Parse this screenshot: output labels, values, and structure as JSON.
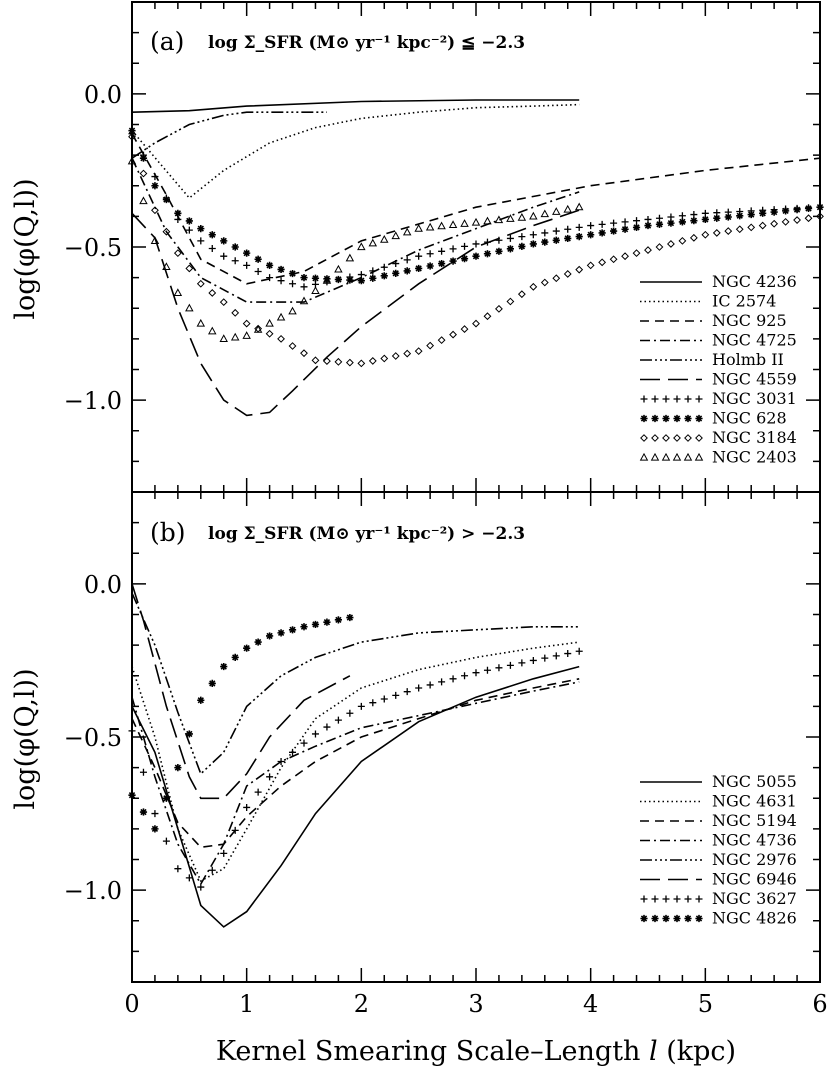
{
  "chart_data": {
    "type": "line",
    "x_axis": {
      "label_pre": "Kernel Smearing Scale–Length ",
      "label_var": "l",
      "label_post": " (kpc)",
      "xlim": [
        0,
        6
      ],
      "ticks": [
        "0",
        "1",
        "2",
        "3",
        "4",
        "5",
        "6"
      ]
    },
    "y_axis": {
      "label": "log(φ(Q,l))",
      "ticks": [
        "0.0",
        "−0.5",
        "−1.0"
      ]
    },
    "panels": [
      {
        "id": "a",
        "label": "(a)",
        "condition": "log Σ_SFR (M⊙ yr⁻¹ kpc⁻²) ≦ −2.3",
        "ylim": [
          -1.3,
          0.3
        ],
        "series": [
          {
            "name": "NGC 4236",
            "style": "solid",
            "x": [
              0,
              0.5,
              1,
              2,
              3,
              3.9
            ],
            "y": [
              -0.06,
              -0.055,
              -0.04,
              -0.025,
              -0.02,
              -0.02
            ]
          },
          {
            "name": "IC 2574",
            "style": "dotted",
            "x": [
              0,
              0.5,
              0.8,
              1.2,
              1.6,
              2,
              2.5,
              3,
              3.5,
              3.9
            ],
            "y": [
              -0.12,
              -0.34,
              -0.25,
              -0.16,
              -0.11,
              -0.08,
              -0.06,
              -0.045,
              -0.04,
              -0.035
            ]
          },
          {
            "name": "NGC 925",
            "style": "dashed",
            "x": [
              0,
              0.3,
              0.6,
              1.0,
              1.5,
              2,
              3,
              4,
              5,
              6
            ],
            "y": [
              -0.13,
              -0.33,
              -0.54,
              -0.62,
              -0.58,
              -0.48,
              -0.37,
              -0.3,
              -0.25,
              -0.21
            ]
          },
          {
            "name": "NGC 4725",
            "style": "dashdot",
            "x": [
              0,
              0.3,
              0.6,
              1.0,
              1.5,
              2,
              2.5,
              3,
              3.5,
              3.9
            ],
            "y": [
              -0.21,
              -0.45,
              -0.6,
              -0.68,
              -0.68,
              -0.6,
              -0.51,
              -0.44,
              -0.37,
              -0.32
            ]
          },
          {
            "name": "Holmb II",
            "style": "dashdotdotdot",
            "x": [
              0,
              0.2,
              0.5,
              0.8,
              1.0,
              1.2,
              1.5,
              1.7
            ],
            "y": [
              -0.21,
              -0.16,
              -0.1,
              -0.07,
              -0.06,
              -0.06,
              -0.06,
              -0.06
            ]
          },
          {
            "name": "NGC 4559",
            "style": "longdash",
            "x": [
              0,
              0.2,
              0.4,
              0.6,
              0.8,
              1.0,
              1.2,
              1.4,
              1.7,
              2,
              2.5,
              3,
              3.5,
              3.9
            ],
            "y": [
              -0.39,
              -0.47,
              -0.7,
              -0.88,
              -1.0,
              -1.05,
              -1.04,
              -0.97,
              -0.86,
              -0.76,
              -0.62,
              -0.5,
              -0.43,
              -0.38
            ]
          },
          {
            "name": "NGC 3031",
            "style": "plus",
            "x": [
              0,
              0.2,
              0.4,
              0.6,
              0.8,
              1.0,
              1.2,
              1.5,
              2,
              2.5,
              3,
              3.5,
              4,
              4.5,
              5,
              5.5,
              6
            ],
            "y": [
              -0.13,
              -0.27,
              -0.41,
              -0.48,
              -0.53,
              -0.56,
              -0.6,
              -0.63,
              -0.59,
              -0.53,
              -0.49,
              -0.46,
              -0.43,
              -0.41,
              -0.39,
              -0.38,
              -0.37
            ]
          },
          {
            "name": "NGC 628",
            "style": "star",
            "x": [
              0,
              0.2,
              0.4,
              0.6,
              0.8,
              1.0,
              1.2,
              1.5,
              2,
              2.5,
              3,
              3.5,
              4,
              4.5,
              5,
              5.5,
              6
            ],
            "y": [
              -0.12,
              -0.3,
              -0.39,
              -0.44,
              -0.48,
              -0.52,
              -0.56,
              -0.6,
              -0.61,
              -0.57,
              -0.53,
              -0.49,
              -0.46,
              -0.43,
              -0.41,
              -0.39,
              -0.37
            ]
          },
          {
            "name": "NGC 3184",
            "style": "diamond",
            "x": [
              0,
              0.2,
              0.4,
              0.6,
              0.8,
              1.0,
              1.3,
              1.6,
              2,
              2.5,
              3,
              3.5,
              4,
              4.5,
              5,
              5.5,
              6
            ],
            "y": [
              -0.14,
              -0.38,
              -0.52,
              -0.62,
              -0.68,
              -0.75,
              -0.8,
              -0.87,
              -0.88,
              -0.84,
              -0.75,
              -0.63,
              -0.56,
              -0.51,
              -0.46,
              -0.43,
              -0.4
            ]
          },
          {
            "name": "NGC 2403",
            "style": "triangle",
            "x": [
              0,
              0.2,
              0.4,
              0.6,
              0.8,
              1.0,
              1.2,
              1.4,
              1.7,
              2,
              2.5,
              3,
              3.5,
              3.9
            ],
            "y": [
              -0.22,
              -0.48,
              -0.65,
              -0.75,
              -0.8,
              -0.79,
              -0.75,
              -0.71,
              -0.61,
              -0.5,
              -0.44,
              -0.42,
              -0.4,
              -0.37
            ]
          }
        ]
      },
      {
        "id": "b",
        "label": "(b)",
        "condition": "log Σ_SFR (M⊙ yr⁻¹ kpc⁻²) > −2.3",
        "ylim": [
          -1.3,
          0.3
        ],
        "series": [
          {
            "name": "NGC 5055",
            "style": "solid",
            "x": [
              0,
              0.2,
              0.4,
              0.6,
              0.8,
              1.0,
              1.3,
              1.6,
              2,
              2.5,
              3,
              3.5,
              3.9
            ],
            "y": [
              -0.4,
              -0.55,
              -0.8,
              -1.05,
              -1.12,
              -1.07,
              -0.92,
              -0.75,
              -0.58,
              -0.45,
              -0.37,
              -0.31,
              -0.27
            ]
          },
          {
            "name": "NGC 4631",
            "style": "dotted",
            "x": [
              0,
              0.2,
              0.4,
              0.6,
              0.8,
              1.0,
              1.3,
              1.6,
              2,
              2.5,
              3,
              3.5,
              3.9
            ],
            "y": [
              -0.27,
              -0.5,
              -0.8,
              -0.97,
              -0.93,
              -0.8,
              -0.6,
              -0.44,
              -0.34,
              -0.28,
              -0.24,
              -0.21,
              -0.19
            ]
          },
          {
            "name": "NGC 5194",
            "style": "dashed",
            "x": [
              0,
              0.2,
              0.4,
              0.6,
              0.8,
              1.0,
              1.3,
              1.6,
              2,
              2.5,
              3,
              3.5,
              3.9
            ],
            "y": [
              -0.44,
              -0.6,
              -0.78,
              -0.86,
              -0.85,
              -0.76,
              -0.66,
              -0.58,
              -0.5,
              -0.44,
              -0.38,
              -0.34,
              -0.31
            ]
          },
          {
            "name": "NGC 4736",
            "style": "dashdot",
            "x": [
              0,
              0.2,
              0.4,
              0.6,
              0.8,
              1.0,
              1.3,
              1.6,
              2,
              2.5,
              3,
              3.5,
              3.9
            ],
            "y": [
              -0.37,
              -0.63,
              -0.85,
              -0.98,
              -0.85,
              -0.66,
              -0.58,
              -0.53,
              -0.47,
              -0.43,
              -0.39,
              -0.35,
              -0.32
            ]
          },
          {
            "name": "NGC 2976",
            "style": "dashdotdotdot",
            "x": [
              0,
              0.2,
              0.4,
              0.6,
              0.8,
              1.0,
              1.3,
              1.6,
              2,
              2.5,
              3,
              3.5,
              3.9
            ],
            "y": [
              -0.03,
              -0.2,
              -0.42,
              -0.62,
              -0.55,
              -0.4,
              -0.3,
              -0.24,
              -0.19,
              -0.16,
              -0.15,
              -0.14,
              -0.14
            ]
          },
          {
            "name": "NGC 6946",
            "style": "longdash",
            "x": [
              0,
              0.1,
              0.3,
              0.5,
              0.6,
              0.8,
              1.0,
              1.2,
              1.5,
              1.9
            ],
            "y": [
              0.0,
              -0.12,
              -0.4,
              -0.63,
              -0.7,
              -0.7,
              -0.62,
              -0.5,
              -0.38,
              -0.3
            ]
          },
          {
            "name": "NGC 3627",
            "style": "plus",
            "x": [
              0,
              0.2,
              0.4,
              0.6,
              0.8,
              1.0,
              1.3,
              1.6,
              2,
              2.5,
              3,
              3.5,
              3.9
            ],
            "y": [
              -0.48,
              -0.75,
              -0.93,
              -0.99,
              -0.88,
              -0.73,
              -0.58,
              -0.49,
              -0.4,
              -0.34,
              -0.29,
              -0.25,
              -0.22
            ]
          },
          {
            "name": "NGC 4826",
            "style": "star",
            "x": [
              0,
              0.2,
              0.4,
              0.6,
              0.8,
              1.0,
              1.2,
              1.5,
              1.9
            ],
            "y": [
              -0.69,
              -0.8,
              -0.6,
              -0.38,
              -0.27,
              -0.21,
              -0.17,
              -0.14,
              -0.11
            ]
          }
        ]
      }
    ]
  }
}
